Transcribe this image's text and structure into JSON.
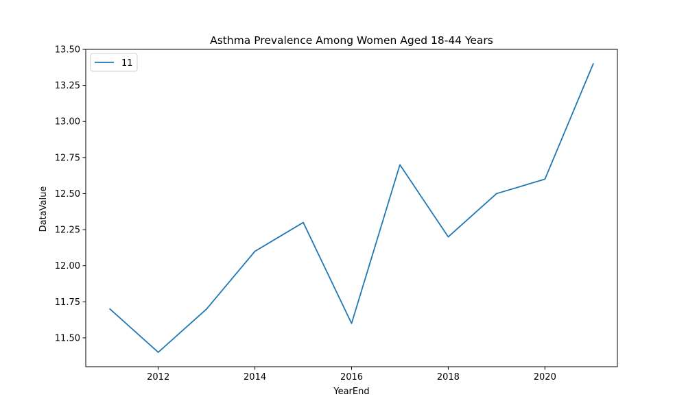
{
  "chart_data": {
    "type": "line",
    "title": "Asthma Prevalence Among Women Aged 18-44 Years",
    "xlabel": "YearEnd",
    "ylabel": "DataValue",
    "x": [
      2011,
      2012,
      2013,
      2014,
      2015,
      2016,
      2017,
      2018,
      2019,
      2020,
      2021
    ],
    "series": [
      {
        "name": "11",
        "color": "#1f77b4",
        "values": [
          11.7,
          11.4,
          11.7,
          12.1,
          12.3,
          11.6,
          12.7,
          12.2,
          12.5,
          12.6,
          13.4
        ]
      }
    ],
    "xlim": [
      2010.5,
      2021.5
    ],
    "ylim": [
      11.3,
      13.5
    ],
    "xticks": [
      "2012",
      "2014",
      "2016",
      "2018",
      "2020"
    ],
    "yticks": [
      "11.50",
      "11.75",
      "12.00",
      "12.25",
      "12.50",
      "12.75",
      "13.00",
      "13.25",
      "13.50"
    ],
    "grid": false,
    "legend_position": "upper-left"
  }
}
